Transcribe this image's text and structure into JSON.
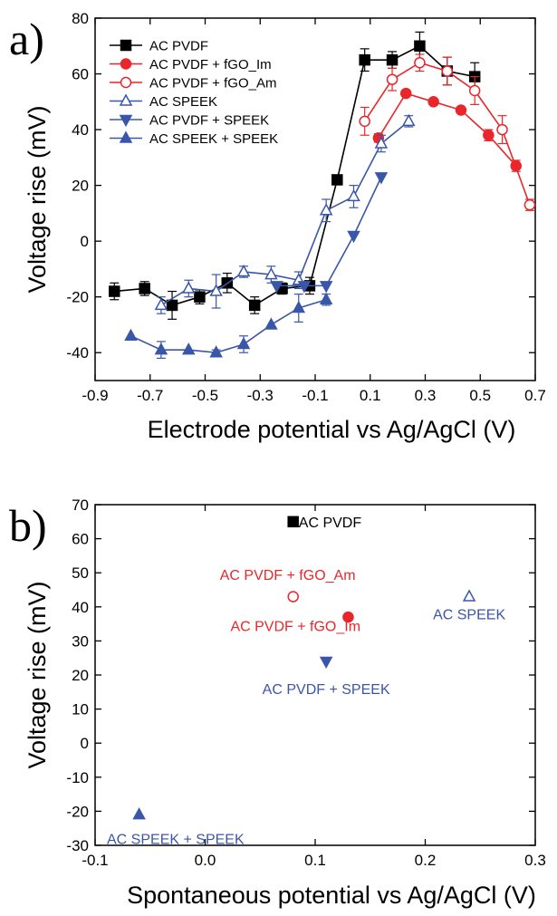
{
  "colors": {
    "black": "#000000",
    "red": "#e8262b",
    "blue": "#3a56a8"
  },
  "chart_data": [
    {
      "type": "line",
      "panel_label": "a)",
      "xlabel": "Electrode potential vs Ag/AgCl (V)",
      "ylabel": "Voltage rise (mV)",
      "xlim": [
        -0.9,
        0.7
      ],
      "ylim": [
        -50,
        80
      ],
      "xticks": [
        "-0.9",
        "-0.7",
        "-0.5",
        "-0.3",
        "-0.1",
        "0.1",
        "0.3",
        "0.5",
        "0.7"
      ],
      "yticks": [
        "-40",
        "-20",
        "0",
        "20",
        "40",
        "60",
        "80"
      ],
      "legend_position": "top-left",
      "series": [
        {
          "name": "AC PVDF",
          "color": "black",
          "marker": "square-filled",
          "x": [
            -0.83,
            -0.72,
            -0.62,
            -0.52,
            -0.42,
            -0.32,
            -0.22,
            -0.12,
            -0.02,
            0.08,
            0.18,
            0.28,
            0.38,
            0.48
          ],
          "y": [
            -18,
            -17,
            -23,
            -20,
            -15,
            -23,
            -17,
            -16,
            22,
            65,
            65,
            70,
            61,
            59
          ],
          "err": [
            3,
            2.5,
            5,
            2.5,
            3.5,
            3,
            2,
            3,
            0,
            4,
            3,
            5,
            5,
            5
          ]
        },
        {
          "name": "AC PVDF + fGO_Im",
          "color": "red",
          "marker": "circle-filled",
          "x": [
            0.13,
            0.23,
            0.33,
            0.43,
            0.53,
            0.63
          ],
          "y": [
            37,
            53,
            50,
            47,
            38,
            27
          ],
          "err": [
            1.5,
            1,
            1,
            1,
            2,
            2
          ]
        },
        {
          "name": "AC PVDF + fGO_Am",
          "color": "red",
          "marker": "circle-open",
          "x": [
            0.08,
            0.18,
            0.28,
            0.38,
            0.48,
            0.58,
            0.68
          ],
          "y": [
            43,
            58,
            64,
            61,
            54,
            40,
            13
          ],
          "err": [
            5,
            4,
            3,
            5,
            5,
            5,
            2
          ]
        },
        {
          "name": "AC SPEEK",
          "color": "blue",
          "marker": "triangle-up-open",
          "x": [
            -0.66,
            -0.56,
            -0.46,
            -0.36,
            -0.26,
            -0.16,
            -0.06,
            0.04,
            0.14,
            0.24
          ],
          "y": [
            -23,
            -17,
            -18,
            -11,
            -12,
            -14,
            11,
            16,
            35,
            43
          ],
          "err": [
            3,
            3,
            6,
            2,
            3,
            3,
            4,
            4,
            3,
            2
          ]
        },
        {
          "name": "AC PVDF + SPEEK",
          "color": "blue",
          "marker": "triangle-down-filled",
          "x": [
            -0.24,
            -0.14,
            -0.06,
            0.04,
            0.14
          ],
          "y": [
            -16,
            -16,
            -16,
            2,
            23
          ],
          "err": [
            0,
            0,
            0,
            0,
            0
          ]
        },
        {
          "name": "AC SPEEK + SPEEK",
          "color": "blue",
          "marker": "triangle-up-filled",
          "x": [
            -0.77,
            -0.66,
            -0.56,
            -0.46,
            -0.36,
            -0.26,
            -0.16,
            -0.06
          ],
          "y": [
            -34,
            -39,
            -39,
            -40,
            -37,
            -30,
            -24,
            -21
          ],
          "err": [
            0,
            3,
            0,
            1,
            3,
            0,
            5,
            2
          ]
        }
      ]
    },
    {
      "type": "scatter",
      "panel_label": "b)",
      "xlabel": "Spontaneous potential vs Ag/AgCl (V)",
      "ylabel": "Voltage rise (mV)",
      "xlim": [
        -0.1,
        0.3
      ],
      "ylim": [
        -30,
        70
      ],
      "xticks": [
        "-0.1",
        "0.0",
        "0.1",
        "0.2",
        "0.3"
      ],
      "yticks": [
        "-30",
        "-20",
        "-10",
        "0",
        "10",
        "20",
        "30",
        "40",
        "50",
        "60",
        "70"
      ],
      "points": [
        {
          "label": "AC PVDF",
          "x": 0.08,
          "y": 65,
          "color": "black",
          "marker": "square-filled",
          "label_dx": 0.005,
          "label_dy": 0
        },
        {
          "label": "AC PVDF + fGO_Am",
          "x": 0.08,
          "y": 43,
          "color": "red",
          "marker": "circle-open",
          "label_dx": -0.005,
          "label_dy": 6.5
        },
        {
          "label": "AC PVDF + fGO_Im",
          "x": 0.13,
          "y": 37,
          "color": "red",
          "marker": "circle-filled",
          "label_dx": -0.107,
          "label_dy": -2.5
        },
        {
          "label": "AC SPEEK",
          "x": 0.24,
          "y": 43,
          "color": "blue",
          "marker": "triangle-up-open",
          "label_dx": 0,
          "label_dy": -5
        },
        {
          "label": "AC PVDF + SPEEK",
          "x": 0.11,
          "y": 24,
          "color": "blue",
          "marker": "triangle-down-filled",
          "label_dx": 0,
          "label_dy": -8
        },
        {
          "label": "AC SPEEK + SPEEK",
          "x": -0.06,
          "y": -21,
          "color": "blue",
          "marker": "triangle-up-filled",
          "label_dx": -0.02,
          "label_dy": -7
        }
      ]
    }
  ]
}
